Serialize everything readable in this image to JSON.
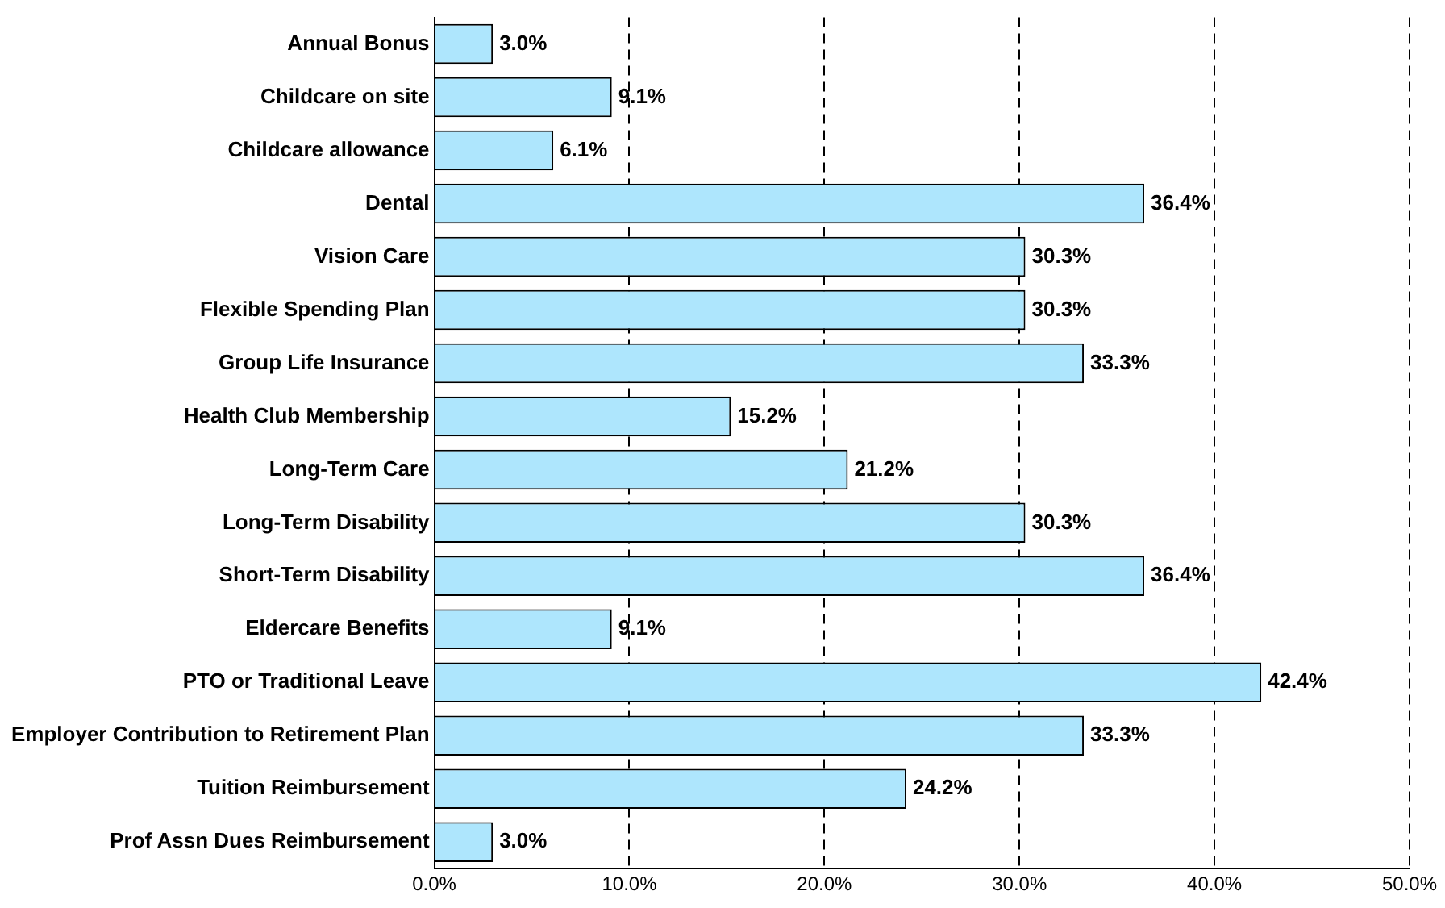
{
  "chart_data": {
    "type": "bar",
    "orientation": "horizontal",
    "categories": [
      "Annual Bonus",
      "Childcare on site",
      "Childcare allowance",
      "Dental",
      "Vision Care",
      "Flexible Spending Plan",
      "Group Life Insurance",
      "Health Club Membership",
      "Long-Term Care",
      "Long-Term Disability",
      "Short-Term Disability",
      "Eldercare Benefits",
      "PTO or Traditional Leave",
      "Employer Contribution to Retirement Plan",
      "Tuition Reimbursement",
      "Prof Assn Dues Reimbursement"
    ],
    "values": [
      3.0,
      9.1,
      6.1,
      36.4,
      30.3,
      30.3,
      33.3,
      15.2,
      21.2,
      30.3,
      36.4,
      9.1,
      42.4,
      33.3,
      24.2,
      3.0
    ],
    "value_labels": [
      "3.0%",
      "9.1%",
      "6.1%",
      "36.4%",
      "30.3%",
      "30.3%",
      "33.3%",
      "15.2%",
      "21.2%",
      "30.3%",
      "36.4%",
      "9.1%",
      "42.4%",
      "33.3%",
      "24.2%",
      "3.0%"
    ],
    "color": "#aee6fd",
    "xlim": [
      0,
      50
    ],
    "xticks": [
      {
        "value": 0,
        "label": "0.0%"
      },
      {
        "value": 10,
        "label": "10.0%"
      },
      {
        "value": 20,
        "label": "20.0%"
      },
      {
        "value": 30,
        "label": "30.0%"
      },
      {
        "value": 40,
        "label": "40.0%"
      },
      {
        "value": 50,
        "label": "50.0%"
      }
    ],
    "grid": "x",
    "legend": false
  }
}
